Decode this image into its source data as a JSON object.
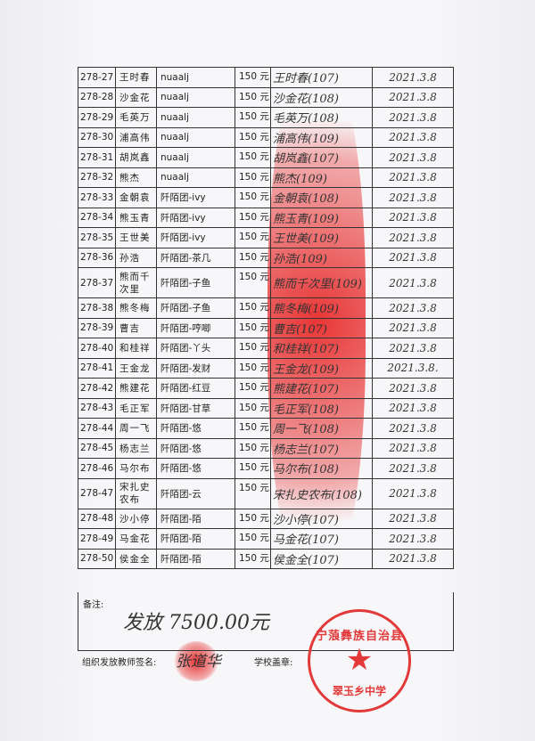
{
  "rows": [
    {
      "id": "278-27",
      "name": "王时春",
      "group": "nuaalj",
      "amount": "150 元",
      "signature": "王时春(107)",
      "date": "2021.3.8"
    },
    {
      "id": "278-28",
      "name": "沙金花",
      "group": "nuaalj",
      "amount": "150 元",
      "signature": "沙金花(108)",
      "date": "2021.3.8"
    },
    {
      "id": "278-29",
      "name": "毛英万",
      "group": "nuaalj",
      "amount": "150 元",
      "signature": "毛英万(108)",
      "date": "2021.3.8"
    },
    {
      "id": "278-30",
      "name": "浦高伟",
      "group": "nuaalj",
      "amount": "150 元",
      "signature": "浦高伟(109)",
      "date": "2021.3.8"
    },
    {
      "id": "278-31",
      "name": "胡岚鑫",
      "group": "nuaalj",
      "amount": "150 元",
      "signature": "胡岚鑫(107)",
      "date": "2021.3.8"
    },
    {
      "id": "278-32",
      "name": "熊杰",
      "group": "nuaalj",
      "amount": "150 元",
      "signature": "熊杰(109)",
      "date": "2021.3.8"
    },
    {
      "id": "278-33",
      "name": "金朝袁",
      "group": "阡陌团-ivy",
      "amount": "150 元",
      "signature": "金朝袁(108)",
      "date": "2021.3.8"
    },
    {
      "id": "278-34",
      "name": "熊玉青",
      "group": "阡陌团-ivy",
      "amount": "150 元",
      "signature": "熊玉青(109)",
      "date": "2021.3.8"
    },
    {
      "id": "278-35",
      "name": "王世美",
      "group": "阡陌团-ivy",
      "amount": "150 元",
      "signature": "王世美(109)",
      "date": "2021.3.8"
    },
    {
      "id": "278-36",
      "name": "孙浩",
      "group": "阡陌团-茶几",
      "amount": "150 元",
      "signature": "孙浩(109)",
      "date": "2021.3.8"
    },
    {
      "id": "278-37",
      "name": "熊而千次里",
      "group": "阡陌团-子鱼",
      "amount": "150 元",
      "signature": "熊而千次里(109)",
      "date": "2021.3.8"
    },
    {
      "id": "278-38",
      "name": "熊冬梅",
      "group": "阡陌团-子鱼",
      "amount": "150 元",
      "signature": "熊冬梅(109)",
      "date": "2021.3.8"
    },
    {
      "id": "278-39",
      "name": "曹吉",
      "group": "阡陌团-哼唧",
      "amount": "150 元",
      "signature": "曹吉(107)",
      "date": "2021.3.8"
    },
    {
      "id": "278-40",
      "name": "和桂祥",
      "group": "阡陌团-丫头",
      "amount": "150 元",
      "signature": "和桂祥(107)",
      "date": "2021.3.8"
    },
    {
      "id": "278-41",
      "name": "王金龙",
      "group": "阡陌团-发财",
      "amount": "150 元",
      "signature": "王金龙(109)",
      "date": "2021.3.8."
    },
    {
      "id": "278-42",
      "name": "熊建花",
      "group": "阡陌团-红豆",
      "amount": "150 元",
      "signature": "熊建花(107)",
      "date": "2021.3.8"
    },
    {
      "id": "278-43",
      "name": "毛正军",
      "group": "阡陌团-甘草",
      "amount": "150 元",
      "signature": "毛正军(108)",
      "date": "2021.3.8"
    },
    {
      "id": "278-44",
      "name": "周一飞",
      "group": "阡陌团-悠",
      "amount": "150 元",
      "signature": "周一飞(108)",
      "date": "2021.3.8"
    },
    {
      "id": "278-45",
      "name": "杨志兰",
      "group": "阡陌团-悠",
      "amount": "150 元",
      "signature": "杨志兰(107)",
      "date": "2021.3.8"
    },
    {
      "id": "278-46",
      "name": "马尔布",
      "group": "阡陌团-悠",
      "amount": "150 元",
      "signature": "马尔布(108)",
      "date": "2021.3.8"
    },
    {
      "id": "278-47",
      "name": "宋扎史农布",
      "group": "阡陌团-云",
      "amount": "150 元",
      "signature": "宋扎史农布(108)",
      "date": "2021.3.8"
    },
    {
      "id": "278-48",
      "name": "沙小停",
      "group": "阡陌团-陌",
      "amount": "150 元",
      "signature": "沙小停(107)",
      "date": "2021.3.8"
    },
    {
      "id": "278-49",
      "name": "马金花",
      "group": "阡陌团-陌",
      "amount": "150 元",
      "signature": "马金花(107)",
      "date": "2021.3.8"
    },
    {
      "id": "278-50",
      "name": "侯金全",
      "group": "阡陌团-陌",
      "amount": "150 元",
      "signature": "侯金全(107)",
      "date": "2021.3.8"
    }
  ],
  "remark": {
    "label": "备注:",
    "handwritten": "发放 7500.00元"
  },
  "footer": {
    "teacher_label": "组织发放教师签名:",
    "teacher_signature": "张道华",
    "school_label": "学校盖章:"
  },
  "stamp": {
    "top_text": "宁蒗彝族自治县",
    "bottom_text": "翠玉乡中学",
    "color": "#e23a3a"
  },
  "colors": {
    "ink": "#222222",
    "stamp_red": "#e23a3a"
  }
}
